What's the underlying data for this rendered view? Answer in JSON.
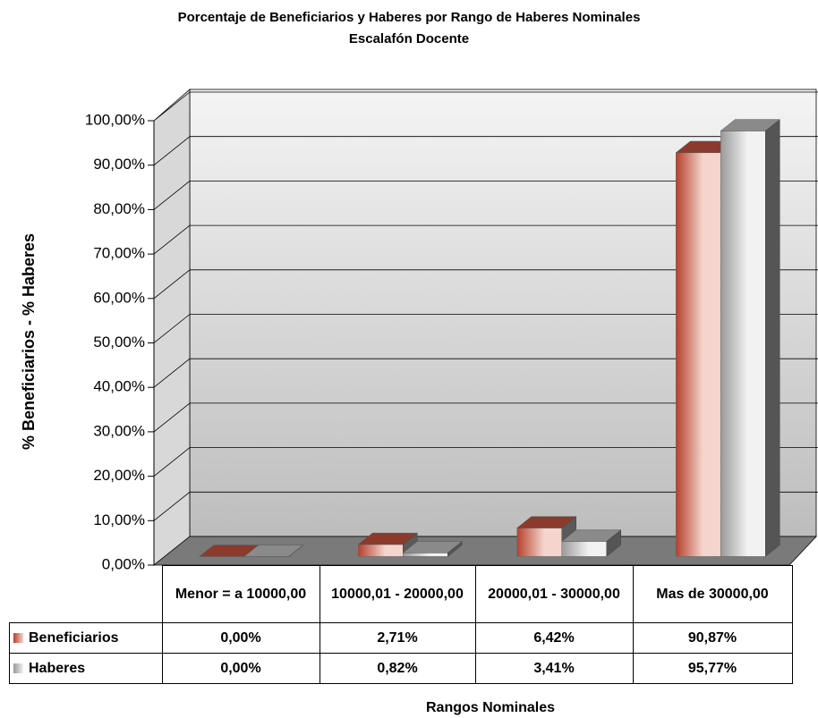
{
  "chart_data": {
    "type": "bar3d",
    "title": "Porcentaje de Beneficiarios y Haberes por Rango de Haberes Nominales",
    "subtitle": "Escalafón Docente",
    "x_label": "Rangos Nominales",
    "y_label": "% Beneficiarios - % Haberes",
    "categories": [
      "Menor = a 10000,00",
      "10000,01 - 20000,00",
      "20000,01 - 30000,00",
      "Mas de 30000,00"
    ],
    "series": [
      {
        "name": "Beneficiarios",
        "color": "#b8402c",
        "light": "#f4d4cc",
        "values": [
          0,
          2.71,
          6.42,
          90.87
        ],
        "value_labels": [
          "0,00%",
          "2,71%",
          "6,42%",
          "90,87%"
        ]
      },
      {
        "name": "Haberes",
        "color": "#9a9a9a",
        "light": "#f2f2f2",
        "values": [
          0,
          0.82,
          3.41,
          95.77
        ],
        "value_labels": [
          "0,00%",
          "0,82%",
          "3,41%",
          "95,77%"
        ]
      }
    ],
    "ylim": [
      0,
      100
    ],
    "yticks": [
      {
        "value": 0,
        "label": "0,00%"
      },
      {
        "value": 10,
        "label": "10,00%"
      },
      {
        "value": 20,
        "label": "20,00%"
      },
      {
        "value": 30,
        "label": "30,00%"
      },
      {
        "value": 40,
        "label": "40,00%"
      },
      {
        "value": 50,
        "label": "50,00%"
      },
      {
        "value": 60,
        "label": "60,00%"
      },
      {
        "value": 70,
        "label": "70,00%"
      },
      {
        "value": 80,
        "label": "80,00%"
      },
      {
        "value": 90,
        "label": "90,00%"
      },
      {
        "value": 100,
        "label": "100,00%"
      }
    ],
    "grid": true
  }
}
